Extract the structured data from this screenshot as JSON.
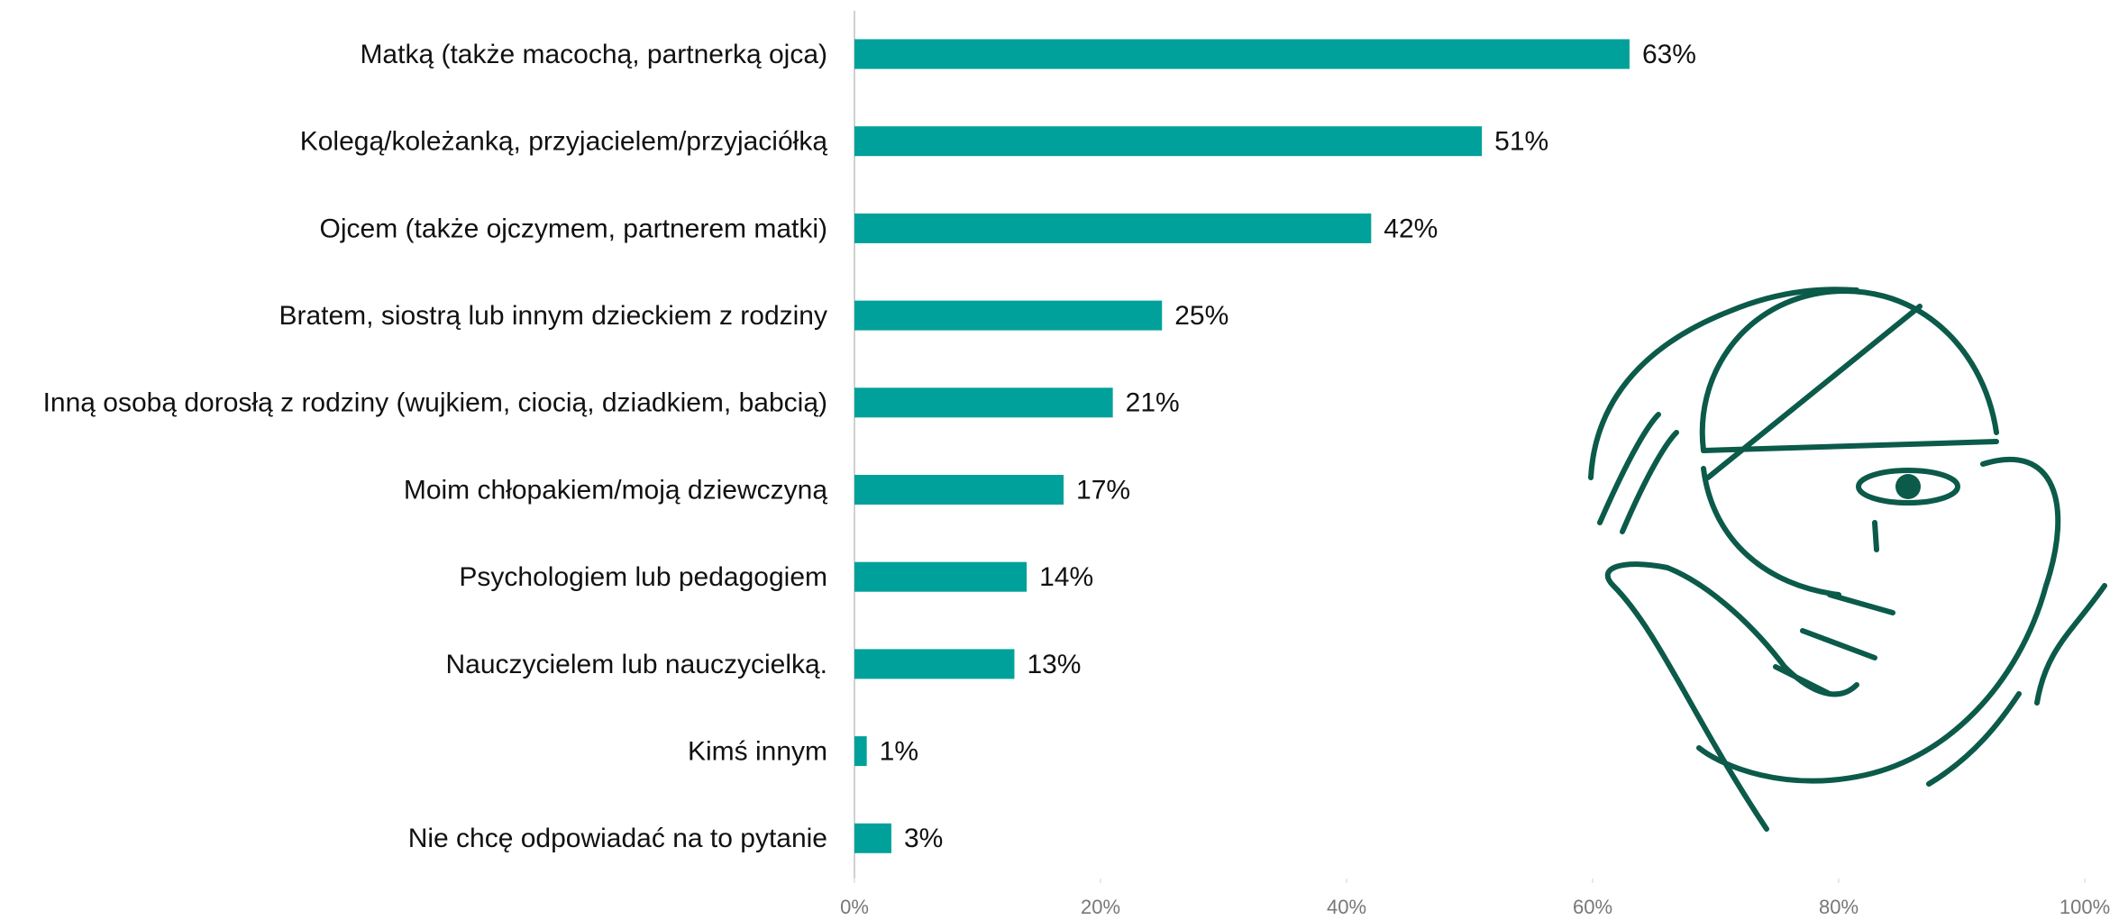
{
  "chart_data": {
    "type": "barh",
    "categories": [
      "Matką (także macochą, partnerką ojca)",
      "Kolegą/koleżanką, przyjacielem/przyjaciółką",
      "Ojcem (także ojczymem, partnerem matki)",
      "Bratem, siostrą lub innym dzieckiem z rodziny",
      "Inną osobą dorosłą z rodziny (wujkiem, ciocią, dziadkiem, babcią)",
      "Moim chłopakiem/moją dziewczyną",
      "Psychologiem lub pedagogiem",
      "Nauczycielem lub nauczycielką.",
      "Kimś innym",
      "Nie chcę odpowiadać na to pytanie"
    ],
    "values": [
      63,
      51,
      42,
      25,
      21,
      17,
      14,
      13,
      1,
      3
    ],
    "value_labels": [
      "63%",
      "51%",
      "42%",
      "25%",
      "21%",
      "17%",
      "14%",
      "13%",
      "1%",
      "3%"
    ],
    "color": "#00a19a",
    "xlim": [
      0,
      100
    ],
    "xticks": [
      {
        "value": 0,
        "label": "0%"
      },
      {
        "value": 20,
        "label": "20%"
      },
      {
        "value": 40,
        "label": "40%"
      },
      {
        "value": 60,
        "label": "60%"
      },
      {
        "value": 80,
        "label": "80%"
      },
      {
        "value": 100,
        "label": "100%"
      }
    ]
  }
}
